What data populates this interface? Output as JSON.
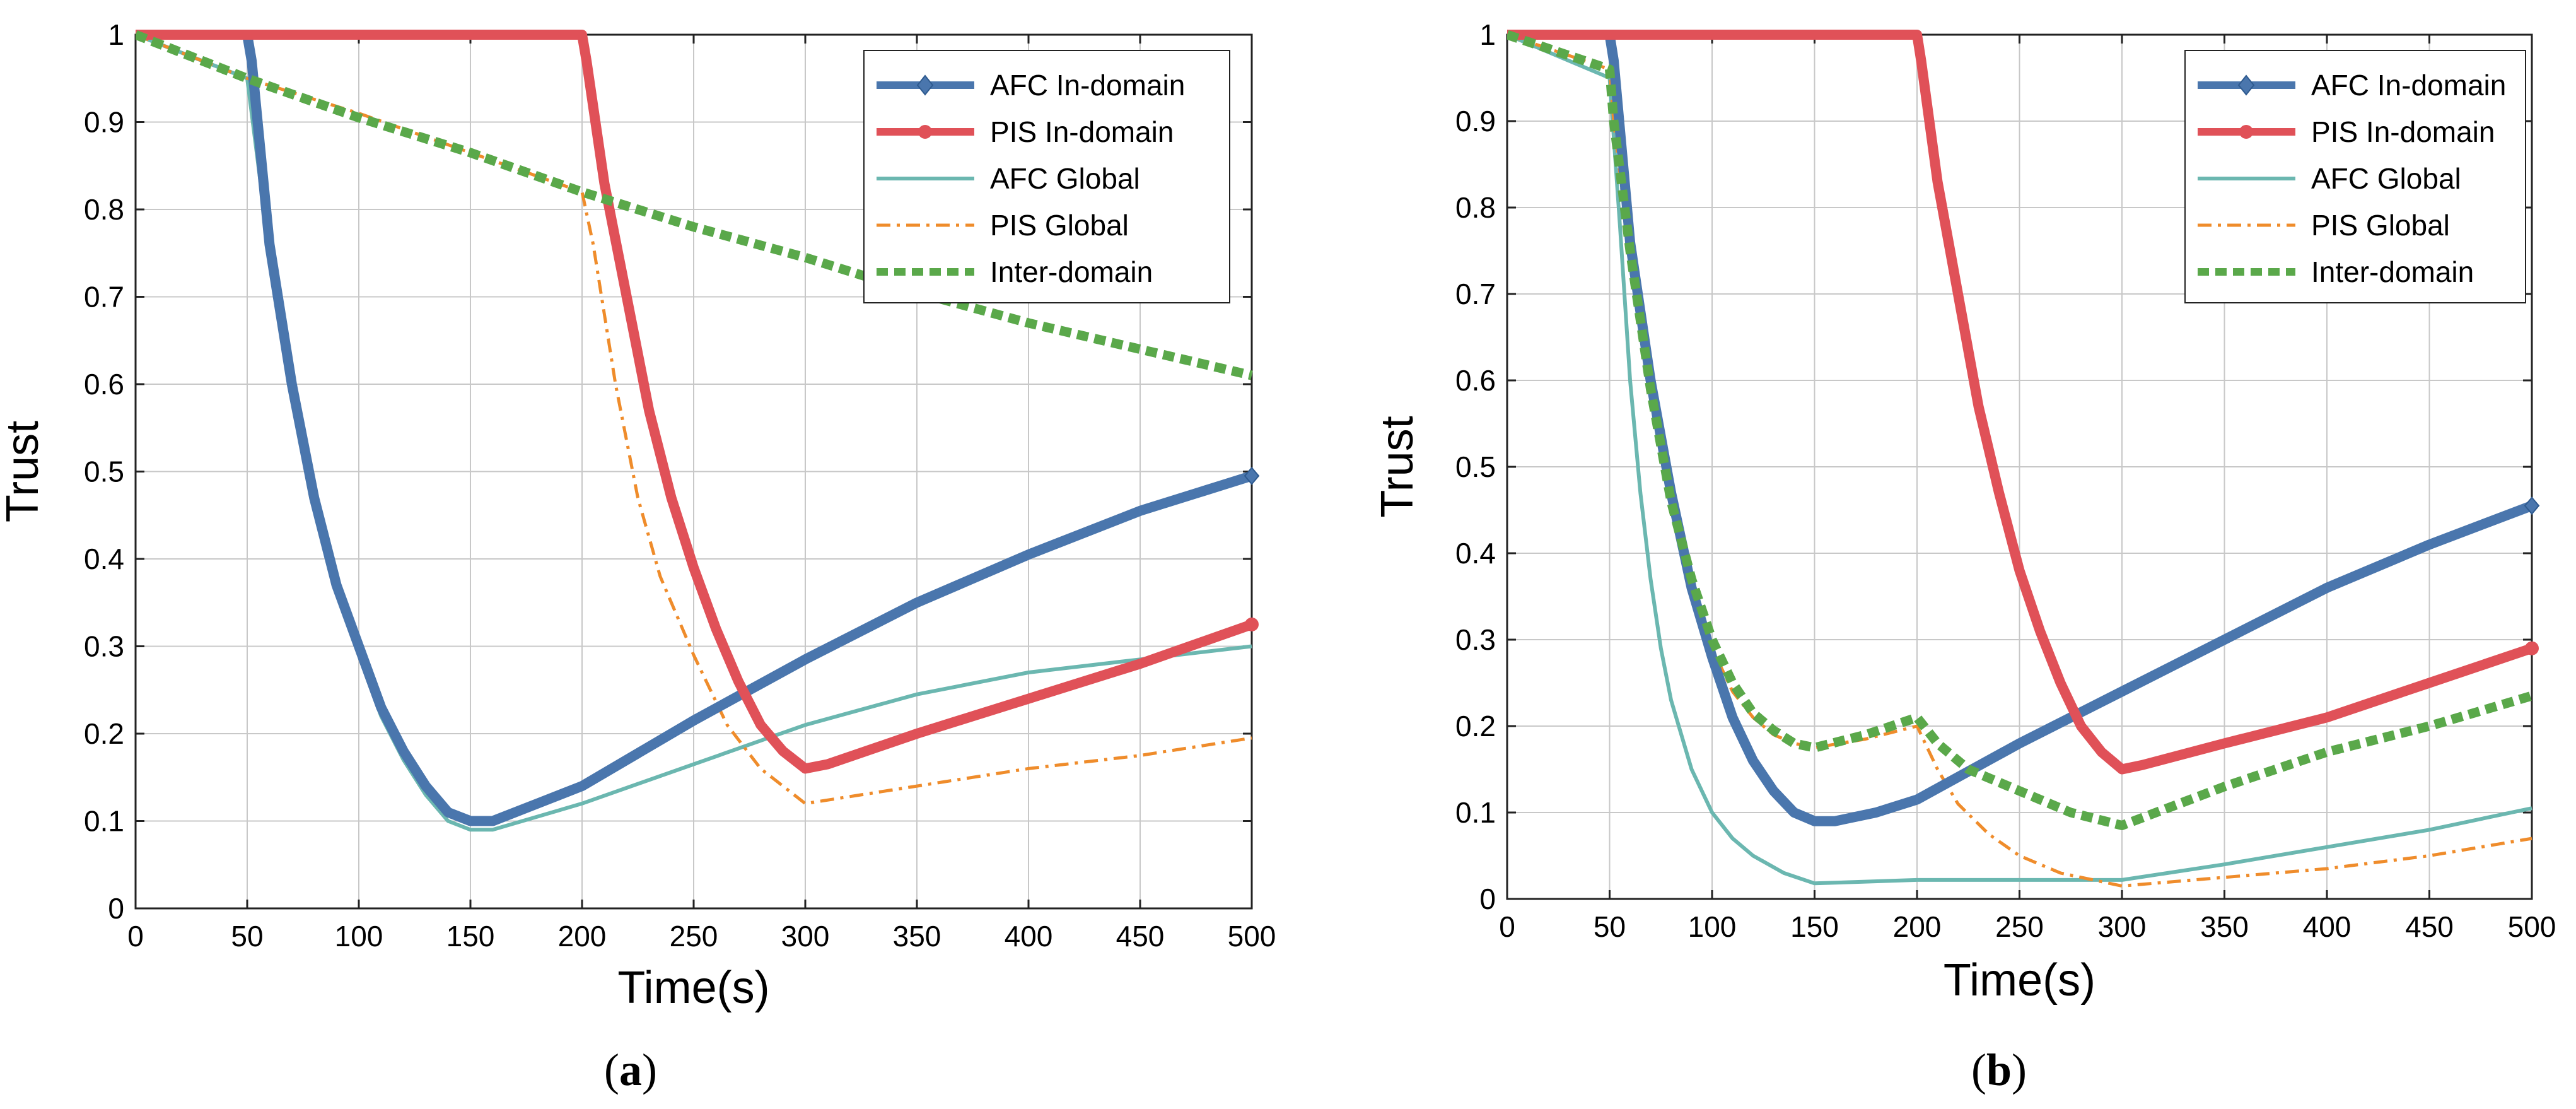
{
  "chart_data": [
    {
      "type": "line",
      "panel_label": "a",
      "xlabel": "Time(s)",
      "ylabel": "Trust",
      "xlim": [
        0,
        500
      ],
      "ylim": [
        0,
        1
      ],
      "xticks": [
        0,
        50,
        100,
        150,
        200,
        250,
        300,
        350,
        400,
        450,
        500
      ],
      "yticks": [
        0,
        0.1,
        0.2,
        0.3,
        0.4,
        0.5,
        0.6,
        0.7,
        0.8,
        0.9,
        1
      ],
      "grid": true,
      "legend_position": "top-right",
      "series": [
        {
          "name": "AFC In-domain",
          "color": "#4a76ad",
          "style": "thick-diamond",
          "points": [
            [
              0,
              1
            ],
            [
              50,
              1
            ],
            [
              52,
              0.97
            ],
            [
              60,
              0.76
            ],
            [
              70,
              0.6
            ],
            [
              80,
              0.47
            ],
            [
              90,
              0.37
            ],
            [
              100,
              0.3
            ],
            [
              110,
              0.23
            ],
            [
              120,
              0.18
            ],
            [
              130,
              0.14
            ],
            [
              140,
              0.11
            ],
            [
              150,
              0.1
            ],
            [
              160,
              0.1
            ],
            [
              180,
              0.12
            ],
            [
              200,
              0.14
            ],
            [
              250,
              0.215
            ],
            [
              300,
              0.285
            ],
            [
              350,
              0.35
            ],
            [
              400,
              0.405
            ],
            [
              450,
              0.455
            ],
            [
              500,
              0.495
            ]
          ]
        },
        {
          "name": "PIS In-domain",
          "color": "#e05158",
          "style": "thick-star",
          "points": [
            [
              0,
              1
            ],
            [
              200,
              1
            ],
            [
              202,
              0.97
            ],
            [
              210,
              0.83
            ],
            [
              220,
              0.7
            ],
            [
              230,
              0.57
            ],
            [
              240,
              0.47
            ],
            [
              250,
              0.39
            ],
            [
              260,
              0.32
            ],
            [
              270,
              0.26
            ],
            [
              280,
              0.21
            ],
            [
              290,
              0.18
            ],
            [
              300,
              0.16
            ],
            [
              310,
              0.165
            ],
            [
              350,
              0.2
            ],
            [
              400,
              0.24
            ],
            [
              450,
              0.28
            ],
            [
              500,
              0.325
            ]
          ]
        },
        {
          "name": "AFC Global",
          "color": "#6bb7b0",
          "style": "thin-solid",
          "points": [
            [
              0,
              1
            ],
            [
              50,
              0.95
            ],
            [
              60,
              0.75
            ],
            [
              70,
              0.59
            ],
            [
              80,
              0.46
            ],
            [
              90,
              0.36
            ],
            [
              100,
              0.29
            ],
            [
              110,
              0.22
            ],
            [
              120,
              0.17
            ],
            [
              130,
              0.13
            ],
            [
              140,
              0.1
            ],
            [
              150,
              0.09
            ],
            [
              160,
              0.09
            ],
            [
              200,
              0.12
            ],
            [
              250,
              0.165
            ],
            [
              300,
              0.21
            ],
            [
              350,
              0.245
            ],
            [
              400,
              0.27
            ],
            [
              450,
              0.285
            ],
            [
              500,
              0.3
            ]
          ]
        },
        {
          "name": "PIS Global",
          "color": "#ef8c2b",
          "style": "dash-dot",
          "points": [
            [
              0,
              1
            ],
            [
              50,
              0.95
            ],
            [
              100,
              0.91
            ],
            [
              150,
              0.865
            ],
            [
              200,
              0.82
            ],
            [
              205,
              0.76
            ],
            [
              215,
              0.6
            ],
            [
              225,
              0.47
            ],
            [
              235,
              0.38
            ],
            [
              250,
              0.29
            ],
            [
              265,
              0.21
            ],
            [
              280,
              0.16
            ],
            [
              300,
              0.12
            ],
            [
              350,
              0.14
            ],
            [
              400,
              0.16
            ],
            [
              450,
              0.175
            ],
            [
              500,
              0.195
            ]
          ]
        },
        {
          "name": "Inter-domain",
          "color": "#5aa84a",
          "style": "thick-dotted",
          "points": [
            [
              0,
              1
            ],
            [
              50,
              0.95
            ],
            [
              100,
              0.905
            ],
            [
              150,
              0.865
            ],
            [
              200,
              0.82
            ],
            [
              250,
              0.78
            ],
            [
              300,
              0.745
            ],
            [
              350,
              0.705
            ],
            [
              400,
              0.67
            ],
            [
              450,
              0.64
            ],
            [
              500,
              0.61
            ]
          ]
        }
      ]
    },
    {
      "type": "line",
      "panel_label": "b",
      "xlabel": "Time(s)",
      "ylabel": "Trust",
      "xlim": [
        0,
        500
      ],
      "ylim": [
        0,
        1
      ],
      "xticks": [
        0,
        50,
        100,
        150,
        200,
        250,
        300,
        350,
        400,
        450,
        500
      ],
      "yticks": [
        0,
        0.1,
        0.2,
        0.3,
        0.4,
        0.5,
        0.6,
        0.7,
        0.8,
        0.9,
        1
      ],
      "grid": true,
      "legend_position": "top-right",
      "series": [
        {
          "name": "AFC In-domain",
          "color": "#4a76ad",
          "style": "thick-diamond",
          "points": [
            [
              0,
              1
            ],
            [
              50,
              1
            ],
            [
              52,
              0.97
            ],
            [
              60,
              0.76
            ],
            [
              70,
              0.6
            ],
            [
              80,
              0.47
            ],
            [
              90,
              0.36
            ],
            [
              100,
              0.28
            ],
            [
              110,
              0.21
            ],
            [
              120,
              0.16
            ],
            [
              130,
              0.125
            ],
            [
              140,
              0.1
            ],
            [
              150,
              0.09
            ],
            [
              160,
              0.09
            ],
            [
              180,
              0.1
            ],
            [
              200,
              0.115
            ],
            [
              250,
              0.18
            ],
            [
              300,
              0.24
            ],
            [
              350,
              0.3
            ],
            [
              400,
              0.36
            ],
            [
              450,
              0.41
            ],
            [
              500,
              0.455
            ]
          ]
        },
        {
          "name": "PIS In-domain",
          "color": "#e05158",
          "style": "thick-star",
          "points": [
            [
              0,
              1
            ],
            [
              200,
              1
            ],
            [
              202,
              0.97
            ],
            [
              210,
              0.83
            ],
            [
              220,
              0.7
            ],
            [
              230,
              0.57
            ],
            [
              240,
              0.47
            ],
            [
              250,
              0.38
            ],
            [
              260,
              0.31
            ],
            [
              270,
              0.25
            ],
            [
              280,
              0.2
            ],
            [
              290,
              0.17
            ],
            [
              300,
              0.15
            ],
            [
              310,
              0.155
            ],
            [
              350,
              0.18
            ],
            [
              400,
              0.21
            ],
            [
              450,
              0.25
            ],
            [
              500,
              0.29
            ]
          ]
        },
        {
          "name": "AFC Global",
          "color": "#6bb7b0",
          "style": "thin-solid",
          "points": [
            [
              0,
              1
            ],
            [
              50,
              0.95
            ],
            [
              55,
              0.78
            ],
            [
              60,
              0.6
            ],
            [
              65,
              0.47
            ],
            [
              70,
              0.37
            ],
            [
              75,
              0.29
            ],
            [
              80,
              0.23
            ],
            [
              90,
              0.15
            ],
            [
              100,
              0.1
            ],
            [
              110,
              0.07
            ],
            [
              120,
              0.05
            ],
            [
              135,
              0.03
            ],
            [
              150,
              0.018
            ],
            [
              200,
              0.022
            ],
            [
              250,
              0.022
            ],
            [
              300,
              0.022
            ],
            [
              350,
              0.04
            ],
            [
              400,
              0.06
            ],
            [
              450,
              0.08
            ],
            [
              500,
              0.105
            ]
          ]
        },
        {
          "name": "PIS Global",
          "color": "#ef8c2b",
          "style": "dash-dot",
          "points": [
            [
              0,
              1
            ],
            [
              50,
              0.96
            ],
            [
              52,
              0.9
            ],
            [
              60,
              0.74
            ],
            [
              70,
              0.58
            ],
            [
              80,
              0.45
            ],
            [
              90,
              0.36
            ],
            [
              100,
              0.29
            ],
            [
              110,
              0.24
            ],
            [
              120,
              0.21
            ],
            [
              130,
              0.19
            ],
            [
              140,
              0.18
            ],
            [
              150,
              0.175
            ],
            [
              175,
              0.185
            ],
            [
              200,
              0.2
            ],
            [
              210,
              0.15
            ],
            [
              220,
              0.11
            ],
            [
              235,
              0.075
            ],
            [
              250,
              0.05
            ],
            [
              270,
              0.03
            ],
            [
              300,
              0.015
            ],
            [
              350,
              0.025
            ],
            [
              400,
              0.035
            ],
            [
              450,
              0.05
            ],
            [
              500,
              0.07
            ]
          ]
        },
        {
          "name": "Inter-domain",
          "color": "#5aa84a",
          "style": "thick-dotted",
          "points": [
            [
              0,
              1
            ],
            [
              50,
              0.96
            ],
            [
              52,
              0.9
            ],
            [
              60,
              0.75
            ],
            [
              70,
              0.59
            ],
            [
              80,
              0.46
            ],
            [
              90,
              0.37
            ],
            [
              100,
              0.3
            ],
            [
              110,
              0.25
            ],
            [
              120,
              0.215
            ],
            [
              130,
              0.195
            ],
            [
              140,
              0.18
            ],
            [
              150,
              0.175
            ],
            [
              175,
              0.19
            ],
            [
              200,
              0.21
            ],
            [
              210,
              0.18
            ],
            [
              225,
              0.15
            ],
            [
              250,
              0.125
            ],
            [
              275,
              0.1
            ],
            [
              300,
              0.085
            ],
            [
              350,
              0.13
            ],
            [
              400,
              0.17
            ],
            [
              450,
              0.2
            ],
            [
              500,
              0.235
            ]
          ]
        }
      ]
    }
  ],
  "captions": [
    "a",
    "b"
  ]
}
